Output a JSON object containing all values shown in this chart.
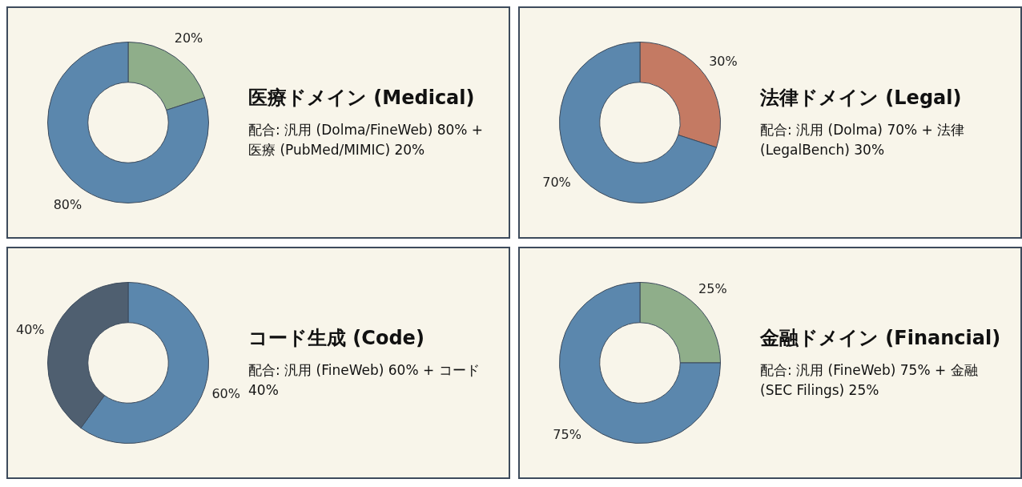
{
  "chart_data": [
    {
      "type": "donut",
      "title": "医療ドメイン (Medical)",
      "subtitle": "配合: 汎用 (Dolma/FineWeb) 80% + 医療 (PubMed/MIMIC) 20%",
      "categories": [
        null,
        null
      ],
      "values": [
        20,
        80
      ],
      "colors": [
        "#8fae8a",
        "#5b87ad"
      ],
      "value_labels": [
        "20%",
        "80%"
      ]
    },
    {
      "type": "donut",
      "title": "法律ドメイン (Legal)",
      "subtitle": "配合: 汎用 (Dolma) 70% + 法律 (LegalBench) 30%",
      "categories": [
        null,
        null
      ],
      "values": [
        30,
        70
      ],
      "colors": [
        "#c47a63",
        "#5b87ad"
      ],
      "value_labels": [
        "30%",
        "70%"
      ]
    },
    {
      "type": "donut",
      "title": "コード生成 (Code)",
      "subtitle": "配合: 汎用 (FineWeb) 60% + コード 40%",
      "categories": [
        null,
        null
      ],
      "values": [
        60,
        40
      ],
      "colors": [
        "#5b87ad",
        "#4f5f70"
      ],
      "value_labels": [
        "60%",
        "40%"
      ]
    },
    {
      "type": "donut",
      "title": "金融ドメイン (Financial)",
      "subtitle": "配合: 汎用 (FineWeb) 75% + 金融 (SEC Filings) 25%",
      "categories": [
        null,
        null
      ],
      "values": [
        25,
        75
      ],
      "colors": [
        "#8fae8a",
        "#5b87ad"
      ],
      "value_labels": [
        "25%",
        "75%"
      ]
    }
  ]
}
